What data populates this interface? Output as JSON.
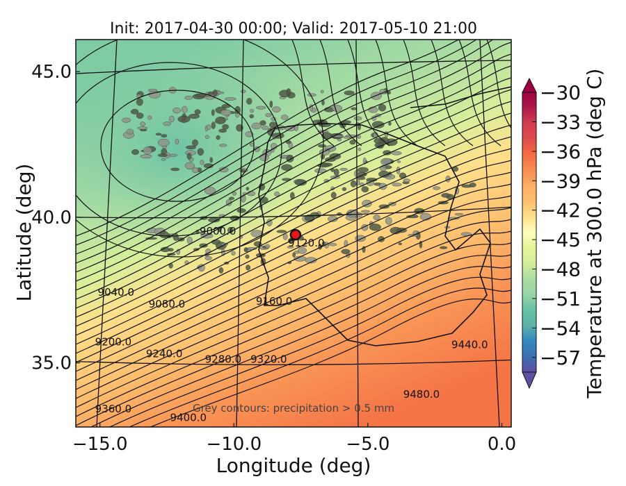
{
  "chart_data": {
    "type": "heatmap",
    "title": "Init: 2017-04-30 00:00; Valid: 2017-05-10 21:00",
    "xlabel": "Longitude (deg)",
    "ylabel": "Latitude (deg)",
    "x_ticks": [
      -15.0,
      -10.0,
      -5.0,
      0.0
    ],
    "x_tick_labels": [
      "−15.0",
      "−10.0",
      "−5.0",
      "0.0"
    ],
    "y_ticks": [
      35.0,
      40.0,
      45.0
    ],
    "y_tick_labels": [
      "35.0",
      "40.0",
      "45.0"
    ],
    "xlim": [
      -15.9,
      0.35
    ],
    "ylim": [
      32.8,
      46.1
    ],
    "colorbar": {
      "label": "Temperature at 300.0 hPa (deg C)",
      "ticks": [
        -30,
        -33,
        -36,
        -39,
        -42,
        -45,
        -48,
        -51,
        -54,
        -57
      ],
      "tick_labels": [
        "−30",
        "−33",
        "−36",
        "−39",
        "−42",
        "−45",
        "−48",
        "−51",
        "−54",
        "−57"
      ],
      "range": [
        -58.5,
        -30
      ],
      "extend": "both",
      "colormap": "Spectral_r"
    },
    "contour_labels": [
      {
        "text": "9000.0",
        "lon": -10.6,
        "lat": 39.4
      },
      {
        "text": "9040.0",
        "lon": -14.4,
        "lat": 37.3
      },
      {
        "text": "9080.0",
        "lon": -12.5,
        "lat": 36.9
      },
      {
        "text": "9120.0",
        "lon": -7.3,
        "lat": 39.0
      },
      {
        "text": "9160.0",
        "lon": -8.5,
        "lat": 37.0
      },
      {
        "text": "9200.0",
        "lon": -14.5,
        "lat": 35.6
      },
      {
        "text": "9240.0",
        "lon": -12.6,
        "lat": 35.2
      },
      {
        "text": "9280.0",
        "lon": -10.4,
        "lat": 35.0
      },
      {
        "text": "9320.0",
        "lon": -8.7,
        "lat": 35.0
      },
      {
        "text": "9360.0",
        "lon": -14.5,
        "lat": 33.3
      },
      {
        "text": "9400.0",
        "lon": -11.7,
        "lat": 33.0
      },
      {
        "text": "9440.0",
        "lon": -1.2,
        "lat": 35.5
      },
      {
        "text": "9480.0",
        "lon": -3.0,
        "lat": 33.8
      }
    ],
    "annotation": "Grey contours: precipitation > 0.5 mm",
    "marker": {
      "lon": -7.7,
      "lat": 39.4,
      "color": "#e8161a"
    }
  }
}
